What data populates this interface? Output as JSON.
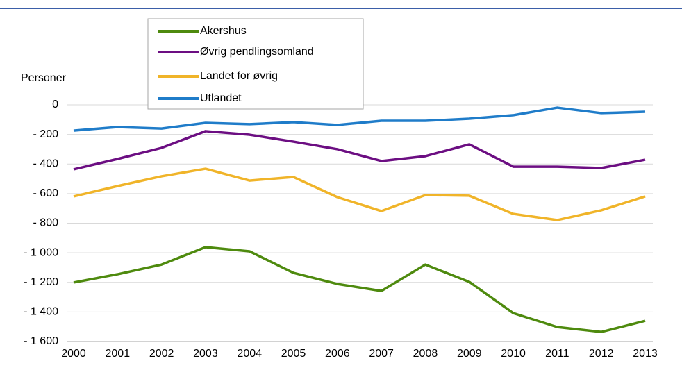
{
  "chart_data": {
    "type": "line",
    "y_label": "Personer",
    "categories": [
      "2000",
      "2001",
      "2002",
      "2003",
      "2004",
      "2005",
      "2006",
      "2007",
      "2008",
      "2009",
      "2010",
      "2011",
      "2012",
      "2013"
    ],
    "series": [
      {
        "name": "Akershus",
        "color": "#4e8a0e",
        "values": [
          -1201,
          -1145,
          -1080,
          -962,
          -990,
          -1136,
          -1211,
          -1258,
          -1080,
          -1197,
          -1408,
          -1502,
          -1535,
          -1460
        ]
      },
      {
        "name": "Øvrig pendlingsomland",
        "color": "#6c0e82",
        "values": [
          -436,
          -366,
          -291,
          -178,
          -202,
          -249,
          -300,
          -380,
          -347,
          -267,
          -418,
          -418,
          -427,
          -371
        ]
      },
      {
        "name": "Landet for øvrig",
        "color": "#f0b429",
        "values": [
          -619,
          -549,
          -483,
          -432,
          -512,
          -488,
          -624,
          -718,
          -610,
          -614,
          -737,
          -779,
          -713,
          -619
        ]
      },
      {
        "name": "Utlandet",
        "color": "#1f7cc9",
        "values": [
          -174,
          -150,
          -160,
          -122,
          -131,
          -117,
          -136,
          -108,
          -108,
          -94,
          -70,
          -19,
          -56,
          -47
        ]
      }
    ],
    "ylim": [
      -1600,
      0
    ],
    "yticks": [
      0,
      {
        "value": -200,
        "label": "- 200"
      },
      {
        "value": -400,
        "label": "- 400"
      },
      {
        "value": -600,
        "label": "- 600"
      },
      {
        "value": -800,
        "label": "- 800"
      },
      {
        "value": -1000,
        "label": "- 1 000"
      },
      {
        "value": -1200,
        "label": "- 1 200"
      },
      {
        "value": -1400,
        "label": "- 1 400"
      },
      {
        "value": -1600,
        "label": "- 1 600"
      }
    ],
    "grid": true
  }
}
